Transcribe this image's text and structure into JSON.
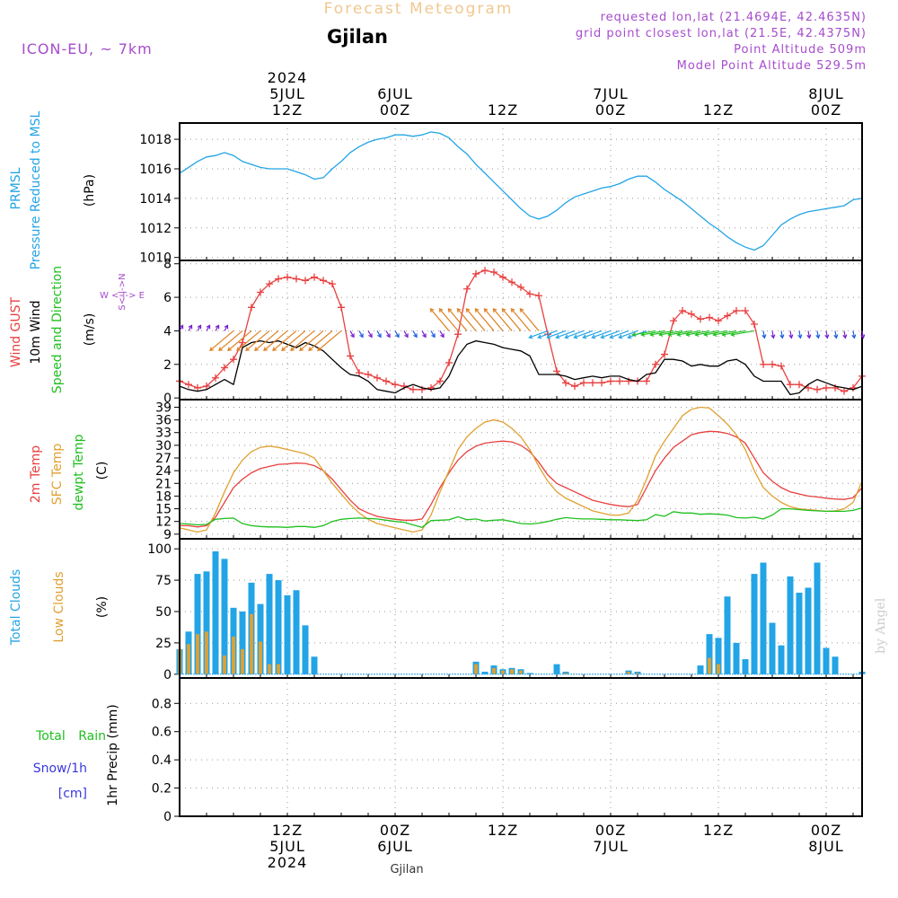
{
  "header": {
    "title": "Forecast Meteogram",
    "location": "Gjilan",
    "model": "ICON-EU, ~ 7km",
    "requested": "requested lon,lat (21.4694E, 42.4635N)",
    "grid_point": "grid point closest lon,lat (21.5E, 42.4375N)",
    "point_altitude": "Point Altitude 509m",
    "model_altitude": "Model Point Altitude 529.5m",
    "footer_location": "Gjilan",
    "credit": "by Angel"
  },
  "time_axis": {
    "top": [
      {
        "hour": 12,
        "lines": [
          "2024",
          "5JUL",
          "12Z"
        ]
      },
      {
        "hour": 24,
        "lines": [
          "6JUL",
          "00Z"
        ]
      },
      {
        "hour": 36,
        "lines": [
          "12Z"
        ]
      },
      {
        "hour": 48,
        "lines": [
          "7JUL",
          "00Z"
        ]
      },
      {
        "hour": 60,
        "lines": [
          "12Z"
        ]
      },
      {
        "hour": 72,
        "lines": [
          "8JUL",
          "00Z"
        ]
      }
    ],
    "bottom": [
      {
        "hour": 12,
        "lines": [
          "12Z",
          "5JUL",
          "2024"
        ]
      },
      {
        "hour": 24,
        "lines": [
          "00Z",
          "6JUL"
        ]
      },
      {
        "hour": 36,
        "lines": [
          "12Z"
        ]
      },
      {
        "hour": 48,
        "lines": [
          "00Z",
          "7JUL"
        ]
      },
      {
        "hour": 60,
        "lines": [
          "12Z"
        ]
      },
      {
        "hour": 72,
        "lines": [
          "00Z",
          "8JUL"
        ]
      }
    ]
  },
  "panels": {
    "pressure": {
      "labels": [
        "PRMSL",
        "Pressure Reduced to MSL"
      ],
      "unit": "(hPa)"
    },
    "wind": {
      "labels": [
        "Wind GUST",
        "10m Wind",
        "Speed and Direction"
      ],
      "unit": "(m/s)",
      "compass": [
        "W <-|-> E",
        "S<-|->N"
      ]
    },
    "temp": {
      "labels": [
        "2m Temp",
        "SFC Temp",
        "dewpt Temp"
      ],
      "unit": "(C)"
    },
    "cloud": {
      "labels": [
        "Total Clouds",
        "Low Clouds"
      ],
      "unit": "(%)"
    },
    "precip": {
      "labels": [
        "Total Rain",
        "Snow/1h",
        "[cm]"
      ],
      "unit": "1hr Precip (mm)"
    }
  },
  "chart_data": [
    {
      "type": "line",
      "name": "pressure",
      "x": [
        0,
        1,
        2,
        3,
        4,
        5,
        6,
        7,
        8,
        9,
        10,
        11,
        12,
        13,
        14,
        15,
        16,
        17,
        18,
        19,
        20,
        21,
        22,
        23,
        24,
        25,
        26,
        27,
        28,
        29,
        30,
        31,
        32,
        33,
        34,
        35,
        36,
        37,
        38,
        39,
        40,
        41,
        42,
        43,
        44,
        45,
        46,
        47,
        48,
        49,
        50,
        51,
        52,
        53,
        54,
        55,
        56,
        57,
        58,
        59,
        60,
        61,
        62,
        63,
        64,
        65,
        66,
        67,
        68,
        69,
        70,
        71,
        72,
        73,
        74,
        75,
        76
      ],
      "series": [
        {
          "name": "PRMSL",
          "values": [
            1015.7,
            1016.1,
            1016.5,
            1016.8,
            1016.9,
            1017.1,
            1016.9,
            1016.5,
            1016.3,
            1016.1,
            1016.0,
            1016.0,
            1016.0,
            1015.8,
            1015.6,
            1015.3,
            1015.4,
            1016.0,
            1016.5,
            1017.1,
            1017.5,
            1017.8,
            1018.0,
            1018.1,
            1018.3,
            1018.3,
            1018.2,
            1018.3,
            1018.5,
            1018.4,
            1018.1,
            1017.5,
            1017.0,
            1016.3,
            1015.7,
            1015.1,
            1014.5,
            1013.9,
            1013.3,
            1012.8,
            1012.6,
            1012.8,
            1013.2,
            1013.7,
            1014.1,
            1014.3,
            1014.5,
            1014.7,
            1014.8,
            1015.0,
            1015.3,
            1015.5,
            1015.5,
            1015.1,
            1014.6,
            1014.2,
            1013.8,
            1013.3,
            1012.8,
            1012.3,
            1011.9,
            1011.4,
            1011.0,
            1010.7,
            1010.5,
            1010.8,
            1011.5,
            1012.2,
            1012.6,
            1012.9,
            1013.1,
            1013.2,
            1013.3,
            1013.4,
            1013.5,
            1013.9,
            1014.0
          ]
        }
      ],
      "yticks": [
        1010,
        1012,
        1014,
        1016,
        1018
      ],
      "ylim": [
        1009.8,
        1019.1
      ]
    },
    {
      "type": "line",
      "name": "wind",
      "x": [
        0,
        1,
        2,
        3,
        4,
        5,
        6,
        7,
        8,
        9,
        10,
        11,
        12,
        13,
        14,
        15,
        16,
        17,
        18,
        19,
        20,
        21,
        22,
        23,
        24,
        25,
        26,
        27,
        28,
        29,
        30,
        31,
        32,
        33,
        34,
        35,
        36,
        37,
        38,
        39,
        40,
        41,
        42,
        43,
        44,
        45,
        46,
        47,
        48,
        49,
        50,
        51,
        52,
        53,
        54,
        55,
        56,
        57,
        58,
        59,
        60,
        61,
        62,
        63,
        64,
        65,
        66,
        67,
        68,
        69,
        70,
        71,
        72,
        73,
        74,
        75,
        76
      ],
      "series": [
        {
          "name": "Wind GUST",
          "values": [
            1.0,
            0.8,
            0.6,
            0.7,
            1.2,
            1.8,
            2.3,
            3.3,
            5.4,
            6.3,
            6.8,
            7.1,
            7.2,
            7.1,
            7.0,
            7.2,
            7.0,
            6.8,
            5.4,
            2.5,
            1.5,
            1.4,
            1.2,
            1.0,
            0.8,
            0.7,
            0.5,
            0.5,
            0.6,
            1.0,
            2.1,
            3.8,
            6.5,
            7.4,
            7.6,
            7.5,
            7.2,
            6.9,
            6.6,
            6.2,
            6.1,
            3.8,
            1.6,
            0.9,
            0.7,
            0.9,
            0.9,
            0.9,
            1.0,
            1.0,
            1.0,
            1.0,
            1.0,
            2.0,
            2.6,
            4.6,
            5.2,
            5.0,
            4.7,
            4.8,
            4.6,
            4.9,
            5.2,
            5.2,
            4.4,
            2.0,
            2.0,
            1.9,
            0.8,
            0.8,
            0.6,
            0.5,
            0.6,
            0.6,
            0.4,
            0.6,
            1.3
          ]
        },
        {
          "name": "10m Wind",
          "values": [
            0.7,
            0.5,
            0.4,
            0.5,
            0.8,
            1.1,
            0.8,
            3.0,
            3.3,
            3.4,
            3.3,
            3.4,
            3.2,
            3.0,
            3.3,
            3.1,
            2.8,
            2.3,
            1.8,
            1.4,
            1.3,
            1.0,
            0.5,
            0.4,
            0.3,
            0.6,
            0.8,
            0.6,
            0.5,
            0.6,
            1.3,
            2.5,
            3.2,
            3.4,
            3.3,
            3.2,
            3.0,
            2.9,
            2.8,
            2.5,
            1.4,
            1.4,
            1.4,
            1.3,
            1.1,
            1.2,
            1.3,
            1.2,
            1.3,
            1.3,
            1.1,
            1.0,
            1.4,
            1.5,
            2.3,
            2.3,
            2.2,
            1.9,
            2.0,
            1.9,
            1.9,
            2.2,
            2.3,
            2.0,
            1.3,
            1.0,
            1.0,
            1.0,
            0.2,
            0.3,
            0.8,
            1.1,
            0.9,
            0.7,
            0.6,
            0.5,
            0.7
          ]
        }
      ],
      "yticks": [
        0,
        2,
        4,
        6,
        8
      ],
      "ylim": [
        -0.1,
        8.2
      ]
    },
    {
      "type": "line",
      "name": "temp",
      "x": [
        0,
        1,
        2,
        3,
        4,
        5,
        6,
        7,
        8,
        9,
        10,
        11,
        12,
        13,
        14,
        15,
        16,
        17,
        18,
        19,
        20,
        21,
        22,
        23,
        24,
        25,
        26,
        27,
        28,
        29,
        30,
        31,
        32,
        33,
        34,
        35,
        36,
        37,
        38,
        39,
        40,
        41,
        42,
        43,
        44,
        45,
        46,
        47,
        48,
        49,
        50,
        51,
        52,
        53,
        54,
        55,
        56,
        57,
        58,
        59,
        60,
        61,
        62,
        63,
        64,
        65,
        66,
        67,
        68,
        69,
        70,
        71,
        72,
        73,
        74,
        75,
        76
      ],
      "series": [
        {
          "name": "2m Temp",
          "values": [
            11,
            11,
            10.7,
            11,
            13,
            16.5,
            20,
            22,
            23.5,
            24.5,
            25,
            25.5,
            25.6,
            25.8,
            25.7,
            25.2,
            24,
            22,
            19.5,
            17,
            15,
            14,
            13.2,
            12.8,
            12.5,
            12.3,
            12.3,
            12.6,
            16,
            20,
            23.5,
            26.5,
            28.5,
            29.8,
            30.5,
            30.8,
            31,
            30.8,
            30,
            28.5,
            26,
            23,
            21,
            20,
            19,
            18,
            17,
            16.5,
            16,
            15.7,
            15.5,
            16,
            20,
            24,
            27,
            29.5,
            31,
            32.5,
            33,
            33.3,
            33.2,
            32.8,
            32,
            30.5,
            27,
            23.5,
            21.5,
            20,
            19,
            18.5,
            18,
            17.8,
            17.5,
            17.3,
            17.2,
            17.6,
            20
          ]
        },
        {
          "name": "SFC Temp",
          "values": [
            10.5,
            10,
            9.5,
            10,
            14,
            19,
            23.5,
            26.5,
            28.5,
            29.5,
            29.8,
            29.5,
            29,
            28.5,
            28,
            27,
            24,
            21,
            18.5,
            16,
            14,
            12.5,
            11.5,
            11,
            10.5,
            10,
            9.5,
            10,
            13.5,
            19,
            24,
            29,
            32,
            34,
            35.5,
            36,
            35.5,
            34,
            32,
            29,
            25,
            21.5,
            19,
            17.5,
            16.5,
            15.5,
            14.5,
            14,
            13.5,
            13.5,
            14,
            17,
            22,
            27.5,
            31,
            34,
            37,
            38.5,
            39,
            38.8,
            37,
            35,
            32.5,
            29,
            24,
            20,
            18,
            16.5,
            15.5,
            15,
            14.8,
            14.6,
            14.4,
            14.5,
            15,
            16.5,
            21.5
          ]
        },
        {
          "name": "dewpt Temp",
          "values": [
            11.5,
            11.4,
            11.2,
            11.3,
            12.5,
            12.7,
            12.8,
            11.5,
            11,
            10.8,
            10.7,
            10.7,
            10.6,
            10.8,
            10.8,
            10.6,
            11,
            12,
            12.5,
            12.7,
            12.8,
            12.7,
            12.6,
            12.3,
            12,
            11.8,
            11.2,
            10.6,
            12.2,
            12.3,
            12.4,
            13.1,
            12.4,
            12.6,
            12.1,
            12.3,
            12.4,
            12,
            11.5,
            11.4,
            11.6,
            12,
            12.5,
            12.9,
            12.7,
            12.6,
            12.6,
            12.5,
            12.4,
            12.4,
            12.3,
            12.2,
            12.4,
            13.6,
            13.2,
            14.3,
            14.0,
            14.0,
            13.7,
            13.8,
            13.7,
            13.5,
            12.9,
            12.8,
            13.0,
            12.6,
            13.5,
            15.0,
            15.0,
            14.8,
            14.6,
            14.5,
            14.4,
            14.4,
            14.4,
            14.6,
            15.2
          ]
        }
      ],
      "yticks": [
        9,
        12,
        15,
        18,
        21,
        24,
        27,
        30,
        33,
        36,
        39
      ],
      "ylim": [
        7.9,
        40.8
      ]
    },
    {
      "type": "bar",
      "name": "clouds",
      "x": [
        0,
        1,
        2,
        3,
        4,
        5,
        6,
        7,
        8,
        9,
        10,
        11,
        12,
        13,
        14,
        15,
        16,
        17,
        18,
        19,
        20,
        21,
        22,
        23,
        24,
        25,
        26,
        27,
        28,
        29,
        30,
        31,
        32,
        33,
        34,
        35,
        36,
        37,
        38,
        39,
        40,
        41,
        42,
        43,
        44,
        45,
        46,
        47,
        48,
        49,
        50,
        51,
        52,
        53,
        54,
        55,
        56,
        57,
        58,
        59,
        60,
        61,
        62,
        63,
        64,
        65,
        66,
        67,
        68,
        69,
        70,
        71,
        72,
        73,
        74,
        75,
        76
      ],
      "series": [
        {
          "name": "Total Clouds",
          "values": [
            20,
            34,
            80,
            82,
            98,
            92,
            53,
            50,
            73,
            56,
            80,
            75,
            63,
            67,
            39,
            14,
            0,
            0,
            0,
            0,
            0,
            0,
            0,
            0,
            0,
            0,
            0,
            0,
            0,
            0,
            0,
            0,
            0,
            10,
            2,
            7,
            4,
            5,
            4,
            1,
            0,
            0,
            8,
            2,
            0,
            0,
            0,
            0,
            0,
            0,
            3,
            2,
            0,
            0,
            0,
            0,
            0,
            0,
            7,
            32,
            29,
            62,
            25,
            12,
            80,
            89,
            41,
            23,
            78,
            65,
            69,
            89,
            21,
            14,
            0,
            0,
            2
          ]
        },
        {
          "name": "Low Clouds",
          "values": [
            20,
            24,
            32,
            34,
            0,
            15,
            30,
            20,
            48,
            26,
            8,
            8,
            0,
            0,
            0,
            0,
            0,
            0,
            0,
            0,
            0,
            0,
            0,
            0,
            0,
            0,
            0,
            0,
            0,
            0,
            0,
            0,
            0,
            8,
            0,
            5,
            3,
            4,
            3,
            0,
            0,
            0,
            0,
            1,
            0,
            0,
            0,
            0,
            0,
            0,
            2,
            1,
            0,
            0,
            0,
            0,
            0,
            0,
            0,
            13,
            8,
            0,
            0,
            0,
            0,
            0,
            0,
            0,
            0,
            0,
            0,
            0,
            0,
            0,
            0,
            0,
            0
          ]
        }
      ],
      "yticks": [
        0,
        25,
        50,
        75,
        100
      ],
      "ylim": [
        -3,
        108
      ]
    },
    {
      "type": "bar",
      "name": "precip",
      "x": [
        0,
        76
      ],
      "series": [
        {
          "name": "Total Rain",
          "values": [
            0,
            0
          ]
        }
      ],
      "yticks": [
        "0",
        "0.2",
        "0.4",
        "0.6",
        "0.8"
      ],
      "ylim": [
        0,
        0.98
      ]
    }
  ]
}
